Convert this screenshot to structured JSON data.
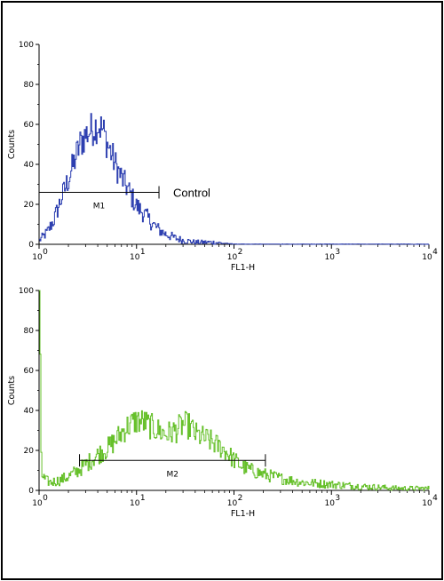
{
  "chart_data": [
    {
      "type": "line",
      "xlabel": "FL1-H",
      "ylabel": "Counts",
      "xscale": "log",
      "xlim": [
        1,
        10000
      ],
      "ylim": [
        0,
        100
      ],
      "x_tick_labels": [
        "10",
        "10",
        "10",
        "10",
        "10"
      ],
      "x_tick_exponents": [
        "0",
        "1",
        "2",
        "3",
        "4"
      ],
      "y_tick_labels": [
        "0",
        "20",
        "40",
        "60",
        "80",
        "100"
      ],
      "color": "#2d3fb0",
      "annotation": "Control",
      "marker": {
        "label": "M1",
        "x_start": 1,
        "x_end": 17,
        "y": 26
      },
      "series": [
        {
          "x": [
            1.0,
            1.2,
            1.4,
            1.6,
            1.8,
            2.0,
            2.3,
            2.6,
            3.0,
            3.5,
            4.0,
            4.5,
            5.0,
            5.5,
            6.0,
            7.0,
            8.0,
            9.0,
            10,
            12,
            14,
            17,
            20,
            25,
            30,
            40,
            60,
            100,
            200,
            1000,
            10000
          ],
          "y": [
            2,
            6,
            12,
            20,
            27,
            33,
            42,
            50,
            55,
            58,
            60,
            57,
            50,
            45,
            40,
            33,
            28,
            23,
            19,
            15,
            11,
            7,
            5,
            3,
            2,
            1,
            1,
            0,
            0,
            0,
            0
          ]
        }
      ]
    },
    {
      "type": "line",
      "xlabel": "FL1-H",
      "ylabel": "Counts",
      "xscale": "log",
      "xlim": [
        1,
        10000
      ],
      "ylim": [
        0,
        100
      ],
      "x_tick_labels": [
        "10",
        "10",
        "10",
        "10",
        "10"
      ],
      "x_tick_exponents": [
        "0",
        "1",
        "2",
        "3",
        "4"
      ],
      "y_tick_labels": [
        "0",
        "20",
        "40",
        "60",
        "80",
        "100"
      ],
      "color": "#66c02a",
      "marker": {
        "label": "M2",
        "x_start": 2.6,
        "x_end": 210,
        "y": 15
      },
      "series": [
        {
          "x": [
            1.0,
            1.05,
            1.15,
            1.3,
            1.6,
            2.0,
            2.5,
            3.0,
            4.0,
            5.0,
            6.0,
            7.0,
            8.0,
            10,
            12,
            15,
            20,
            25,
            30,
            35,
            40,
            50,
            60,
            80,
            100,
            120,
            150,
            200,
            300,
            500,
            1000,
            2000,
            5000,
            10000
          ],
          "y": [
            100,
            8,
            5,
            4,
            5,
            7,
            10,
            13,
            18,
            21,
            25,
            29,
            32,
            35,
            34,
            31,
            28,
            30,
            33,
            32,
            28,
            26,
            24,
            20,
            15,
            12,
            10,
            8,
            6,
            4,
            3,
            2,
            1,
            1
          ]
        }
      ]
    }
  ]
}
